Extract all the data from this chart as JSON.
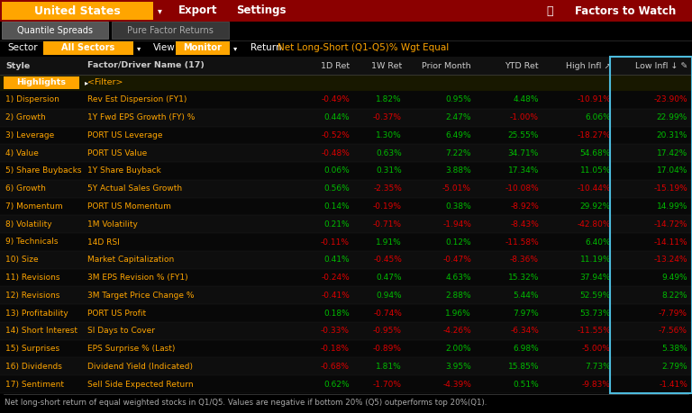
{
  "title_text": "United States",
  "tab1": "Quantile Spreads",
  "tab2": "Pure Factor Returns",
  "sector_label": "Sector",
  "sector_value": "All Sectors",
  "view_label": "View",
  "view_value": "Monitor",
  "return_label": "Return",
  "return_value": "Net Long-Short (Q1-Q5)% Wgt Equal",
  "factors_to_watch": "Factors to Watch",
  "export_text": "Export",
  "settings_text": "Settings",
  "col_headers": [
    "Style",
    "Factor/Driver Name (17)",
    "1D Ret",
    "1W Ret",
    "Prior Month",
    "YTD Ret",
    "High Infl ↗",
    "Low Infl ↓ ✎"
  ],
  "rows": [
    [
      "1) Dispersion",
      "Rev Est Dispersion (FY1)",
      "-0.49%",
      "1.82%",
      "0.95%",
      "4.48%",
      "-10.91%",
      "-23.90%"
    ],
    [
      "2) Growth",
      "1Y Fwd EPS Growth (FY) %",
      "0.44%",
      "-0.37%",
      "2.47%",
      "-1.00%",
      "6.06%",
      "22.99%"
    ],
    [
      "3) Leverage",
      "PORT US Leverage",
      "-0.52%",
      "1.30%",
      "6.49%",
      "25.55%",
      "-18.27%",
      "20.31%"
    ],
    [
      "4) Value",
      "PORT US Value",
      "-0.48%",
      "0.63%",
      "7.22%",
      "34.71%",
      "54.68%",
      "17.42%"
    ],
    [
      "5) Share Buybacks",
      "1Y Share Buyback",
      "0.06%",
      "0.31%",
      "3.88%",
      "17.34%",
      "11.05%",
      "17.04%"
    ],
    [
      "6) Growth",
      "5Y Actual Sales Growth",
      "0.56%",
      "-2.35%",
      "-5.01%",
      "-10.08%",
      "-10.44%",
      "-15.19%"
    ],
    [
      "7) Momentum",
      "PORT US Momentum",
      "0.14%",
      "-0.19%",
      "0.38%",
      "-8.92%",
      "29.92%",
      "14.99%"
    ],
    [
      "8) Volatility",
      "1M Volatility",
      "0.21%",
      "-0.71%",
      "-1.94%",
      "-8.43%",
      "-42.80%",
      "-14.72%"
    ],
    [
      "9) Technicals",
      "14D RSI",
      "-0.11%",
      "1.91%",
      "0.12%",
      "-11.58%",
      "6.40%",
      "-14.11%"
    ],
    [
      "10) Size",
      "Market Capitalization",
      "0.41%",
      "-0.45%",
      "-0.47%",
      "-8.36%",
      "11.19%",
      "-13.24%"
    ],
    [
      "11) Revisions",
      "3M EPS Revision % (FY1)",
      "-0.24%",
      "0.47%",
      "4.63%",
      "15.32%",
      "37.94%",
      "9.49%"
    ],
    [
      "12) Revisions",
      "3M Target Price Change %",
      "-0.41%",
      "0.94%",
      "2.88%",
      "5.44%",
      "52.59%",
      "8.22%"
    ],
    [
      "13) Profitability",
      "PORT US Profit",
      "0.18%",
      "-0.74%",
      "1.96%",
      "7.97%",
      "53.73%",
      "-7.79%"
    ],
    [
      "14) Short Interest",
      "SI Days to Cover",
      "-0.33%",
      "-0.95%",
      "-4.26%",
      "-6.34%",
      "-11.55%",
      "-7.56%"
    ],
    [
      "15) Surprises",
      "EPS Surprise % (Last)",
      "-0.18%",
      "-0.89%",
      "2.00%",
      "6.98%",
      "-5.00%",
      "5.38%"
    ],
    [
      "16) Dividends",
      "Dividend Yield (Indicated)",
      "-0.68%",
      "1.81%",
      "3.95%",
      "15.85%",
      "7.73%",
      "2.79%"
    ],
    [
      "17) Sentiment",
      "Sell Side Expected Return",
      "0.62%",
      "-1.70%",
      "-4.39%",
      "0.51%",
      "-9.83%",
      "-1.41%"
    ]
  ],
  "footnote": "Net long-short return of equal weighted stocks in Q1/Q5. Values are negative if bottom 20% (Q5) outperforms top 20%(Q1).",
  "bg_color": "#000000",
  "header_bar_color": "#8B0000",
  "orange_color": "#FFA500",
  "green_color": "#00BB00",
  "red_color": "#DD0000",
  "white_color": "#FFFFFF",
  "cyan_color": "#4DBBDD",
  "light_gray": "#AAAAAA",
  "tab_active_color": "#505050",
  "tab_inactive_color": "#303030"
}
